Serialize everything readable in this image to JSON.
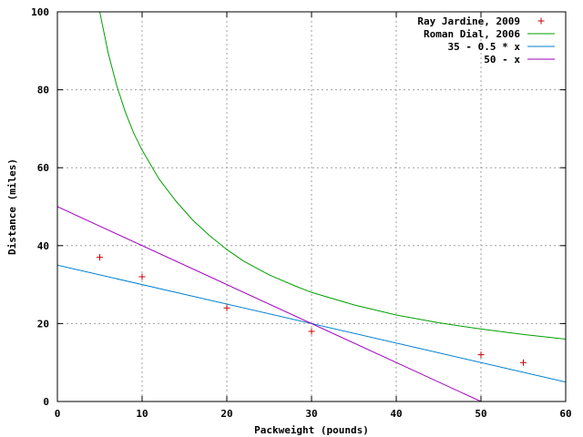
{
  "chart_data": {
    "type": "line",
    "xlabel": "Packweight (pounds)",
    "ylabel": "Distance (miles)",
    "xlim": [
      0,
      60
    ],
    "ylim": [
      0,
      100
    ],
    "x_ticks": [
      0,
      10,
      20,
      30,
      40,
      50,
      60
    ],
    "y_ticks": [
      0,
      20,
      40,
      60,
      80,
      100
    ],
    "grid": true,
    "legend_position": "top-right",
    "series": [
      {
        "name": "Ray Jardine, 2009",
        "kind": "scatter",
        "marker": "plus",
        "color": "#cc0000",
        "x": [
          5,
          10,
          20,
          30,
          50,
          55
        ],
        "y": [
          37,
          32,
          24,
          18,
          12,
          10
        ]
      },
      {
        "name": "Roman Dial, 2006",
        "kind": "curve",
        "color": "#00a000",
        "x": [
          5,
          6,
          7,
          8,
          9,
          10,
          12,
          14,
          16,
          18,
          20,
          22,
          25,
          28,
          30,
          35,
          40,
          45,
          50,
          55,
          60
        ],
        "y": [
          100,
          89.4,
          81.1,
          74.4,
          68.9,
          64.5,
          57.1,
          51.4,
          46.5,
          42.5,
          39.0,
          36.0,
          32.5,
          29.7,
          28.0,
          24.8,
          22.2,
          20.2,
          18.6,
          17.2,
          16.0
        ]
      },
      {
        "name": "35 - 0.5 * x",
        "kind": "line",
        "color": "#0080d0",
        "x": [
          0,
          60
        ],
        "y": [
          35,
          5
        ]
      },
      {
        "name": "50 - x",
        "kind": "line",
        "color": "#a000c0",
        "x": [
          0,
          50
        ],
        "y": [
          50,
          0
        ]
      }
    ]
  }
}
